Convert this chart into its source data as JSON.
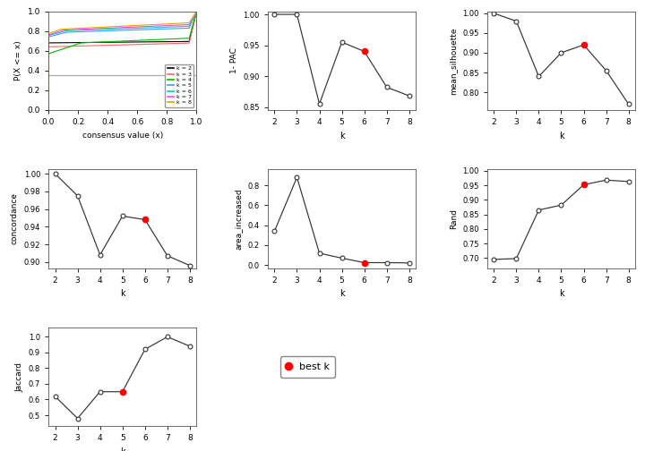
{
  "k_values": [
    2,
    3,
    4,
    5,
    6,
    7,
    8
  ],
  "one_pac": [
    1.0,
    1.0,
    0.855,
    0.955,
    0.94,
    0.882,
    0.868
  ],
  "one_pac_best_k": 6,
  "mean_silhouette": [
    1.0,
    0.98,
    0.84,
    0.9,
    0.92,
    0.855,
    0.77
  ],
  "mean_silhouette_best_k": 6,
  "concordance": [
    1.0,
    0.975,
    0.908,
    0.952,
    0.948,
    0.907,
    0.896
  ],
  "concordance_best_k": 6,
  "area_increased": [
    0.34,
    0.88,
    0.12,
    0.07,
    0.025,
    0.025,
    0.022
  ],
  "area_increased_best_k": 6,
  "rand": [
    0.695,
    0.698,
    0.865,
    0.882,
    0.952,
    0.968,
    0.963
  ],
  "rand_best_k": 6,
  "jaccard": [
    0.62,
    0.48,
    0.65,
    0.65,
    0.92,
    1.0,
    0.94
  ],
  "jaccard_best_k": 5,
  "ecdf_colors": {
    "k2": "#000000",
    "k3": "#FF6666",
    "k4": "#00BB00",
    "k5": "#4499FF",
    "k6": "#00CCCC",
    "k7": "#FF44FF",
    "k8": "#DDAA00"
  },
  "hline_y": 0.35,
  "hline_color": "#AAAAAA",
  "background_color": "#FFFFFF",
  "point_color_best": "#FF0000",
  "line_color": "#333333"
}
